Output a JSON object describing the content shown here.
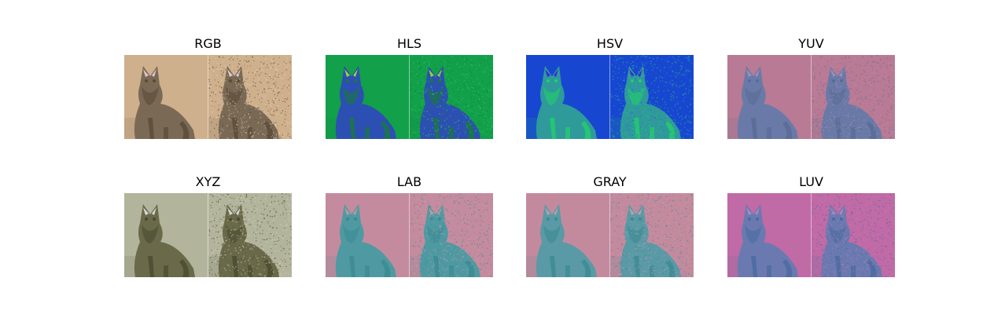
{
  "figure": {
    "panels": [
      {
        "title": "RGB",
        "bg": "#cfb08c",
        "cat": "#7a6a55",
        "detail": "#5a4a38",
        "ear": "#d9c6cf",
        "noise": "#e8d2b6"
      },
      {
        "title": "HLS",
        "bg": "#12a04a",
        "cat": "#2c4fb3",
        "detail": "#1a7a3a",
        "ear": "#9ad038",
        "noise": "#2fd06a"
      },
      {
        "title": "HSV",
        "bg": "#1747d0",
        "cat": "#2f9a9a",
        "detail": "#22d06a",
        "ear": "#3a28e0",
        "noise": "#2f5ce8"
      },
      {
        "title": "YUV",
        "bg": "#b87a94",
        "cat": "#6a7aa8",
        "detail": "#566c94",
        "ear": "#9b8fb5",
        "noise": "#c78aa8"
      },
      {
        "title": "XYZ",
        "bg": "#b3b49c",
        "cat": "#6a6a4a",
        "detail": "#4a4a30",
        "ear": "#d7d8de",
        "noise": "#d5d6c0"
      },
      {
        "title": "LAB",
        "bg": "#c48b9e",
        "cat": "#4f9aa2",
        "detail": "#3a8a92",
        "ear": "#b99a9f",
        "noise": "#d69aab"
      },
      {
        "title": "GRAY",
        "bg": "#c38a9e",
        "cat": "#5a9aa6",
        "detail": "#3a8a92",
        "ear": "#b7a0a6",
        "noise": "#d69aab"
      },
      {
        "title": "LUV",
        "bg": "#c06aa6",
        "cat": "#6a7ab0",
        "detail": "#4a6aa0",
        "ear": "#a48cc0",
        "noise": "#d07ab2"
      }
    ]
  }
}
